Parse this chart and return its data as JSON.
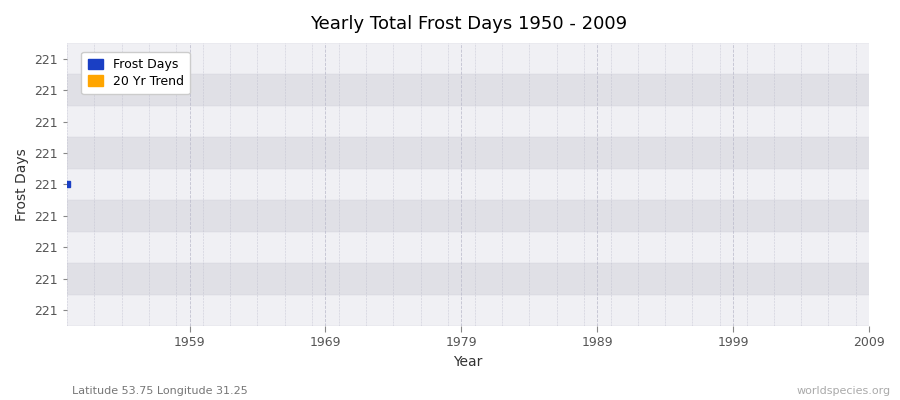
{
  "title": "Yearly Total Frost Days 1950 - 2009",
  "xlabel": "Year",
  "ylabel": "Frost Days",
  "lat_lon_label": "Latitude 53.75 Longitude 31.25",
  "watermark": "worldspecies.org",
  "year_start": 1950,
  "year_end": 2009,
  "frost_days_value": 221,
  "data_color": "#1a3fc4",
  "trend_color": "#ffa500",
  "legend_labels": [
    "Frost Days",
    "20 Yr Trend"
  ],
  "bg_color": "#e8e8ec",
  "band_colors_light": "#f0f0f4",
  "band_colors_dark": "#e0e0e6",
  "grid_color": "#bbbbcc",
  "xlim": [
    1950,
    2009
  ],
  "ylim_low": 220.5,
  "ylim_high": 221.5,
  "n_bands": 9,
  "x_ticks": [
    1959,
    1969,
    1979,
    1989,
    1999,
    2009
  ],
  "n_yticks": 9
}
